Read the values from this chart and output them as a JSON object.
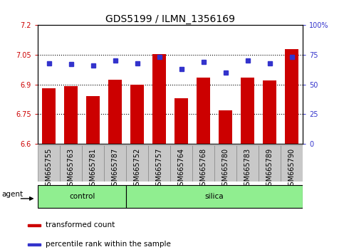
{
  "title": "GDS5199 / ILMN_1356169",
  "samples": [
    "GSM665755",
    "GSM665763",
    "GSM665781",
    "GSM665787",
    "GSM665752",
    "GSM665757",
    "GSM665764",
    "GSM665768",
    "GSM665780",
    "GSM665783",
    "GSM665789",
    "GSM665790"
  ],
  "bar_values": [
    6.88,
    6.89,
    6.84,
    6.925,
    6.9,
    7.055,
    6.83,
    6.935,
    6.77,
    6.935,
    6.92,
    7.08
  ],
  "dot_values_pct": [
    68,
    67,
    66,
    70,
    68,
    73,
    63,
    69,
    60,
    70,
    68,
    73
  ],
  "bar_bottom": 6.6,
  "ylim_left": [
    6.6,
    7.2
  ],
  "ylim_right": [
    0,
    100
  ],
  "yticks_left": [
    6.6,
    6.75,
    6.9,
    7.05,
    7.2
  ],
  "yticks_right": [
    0,
    25,
    50,
    75,
    100
  ],
  "ytick_labels_left": [
    "6.6",
    "6.75",
    "6.9",
    "7.05",
    "7.2"
  ],
  "ytick_labels_right": [
    "0",
    "25",
    "50",
    "75",
    "100%"
  ],
  "hlines": [
    6.75,
    6.9,
    7.05
  ],
  "control_count": 4,
  "silica_count": 8,
  "agent_label": "agent",
  "group_labels": [
    "control",
    "silica"
  ],
  "legend_labels": [
    "transformed count",
    "percentile rank within the sample"
  ],
  "bar_color": "#cc0000",
  "dot_color": "#3333cc",
  "control_bg": "#90ee90",
  "silica_bg": "#90ee90",
  "tick_bg": "#c8c8c8",
  "title_fontsize": 10,
  "tick_fontsize": 7,
  "label_fontsize": 7.5,
  "bar_width": 0.6
}
